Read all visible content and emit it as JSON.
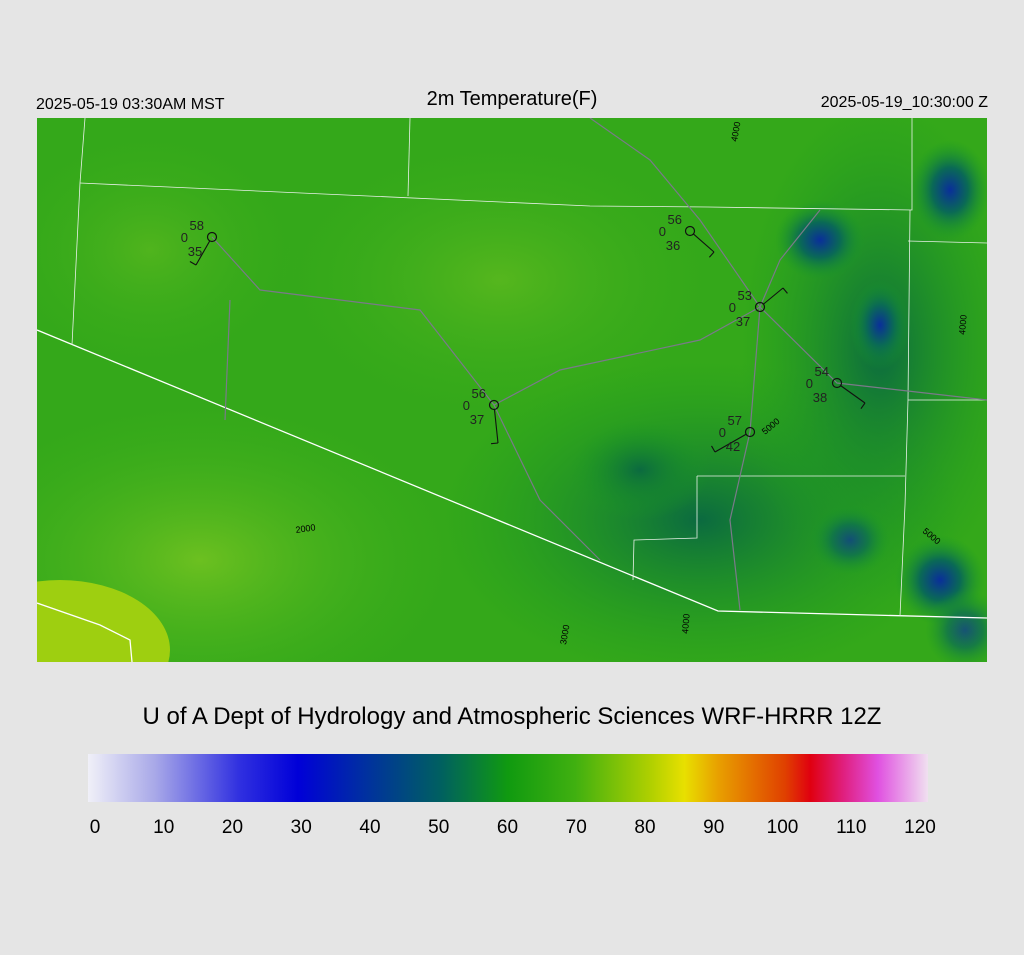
{
  "header": {
    "valid_local": "2025-05-19 03:30AM MST",
    "title": "2m Temperature(F)",
    "valid_utc": "2025-05-19_10:30:00 Z"
  },
  "stations": [
    {
      "temperature": 58,
      "cloud_cover": 0,
      "dewpoint": 35
    },
    {
      "temperature": 56,
      "cloud_cover": 0,
      "dewpoint": 36
    },
    {
      "temperature": 53,
      "cloud_cover": 0,
      "dewpoint": 37
    },
    {
      "temperature": 54,
      "cloud_cover": 0,
      "dewpoint": 38
    },
    {
      "temperature": 56,
      "cloud_cover": 0,
      "dewpoint": 37
    },
    {
      "temperature": 57,
      "cloud_cover": 0,
      "dewpoint": 42
    }
  ],
  "contour_labels": [
    4000,
    2000,
    3000,
    4000,
    5000,
    4000,
    5000
  ],
  "footer": {
    "title": "U of A Dept of Hydrology and Atmospheric Sciences WRF-HRRR 12Z"
  },
  "colorbar": {
    "ticks": [
      0,
      10,
      20,
      30,
      40,
      50,
      60,
      70,
      80,
      90,
      100,
      110,
      120
    ]
  }
}
